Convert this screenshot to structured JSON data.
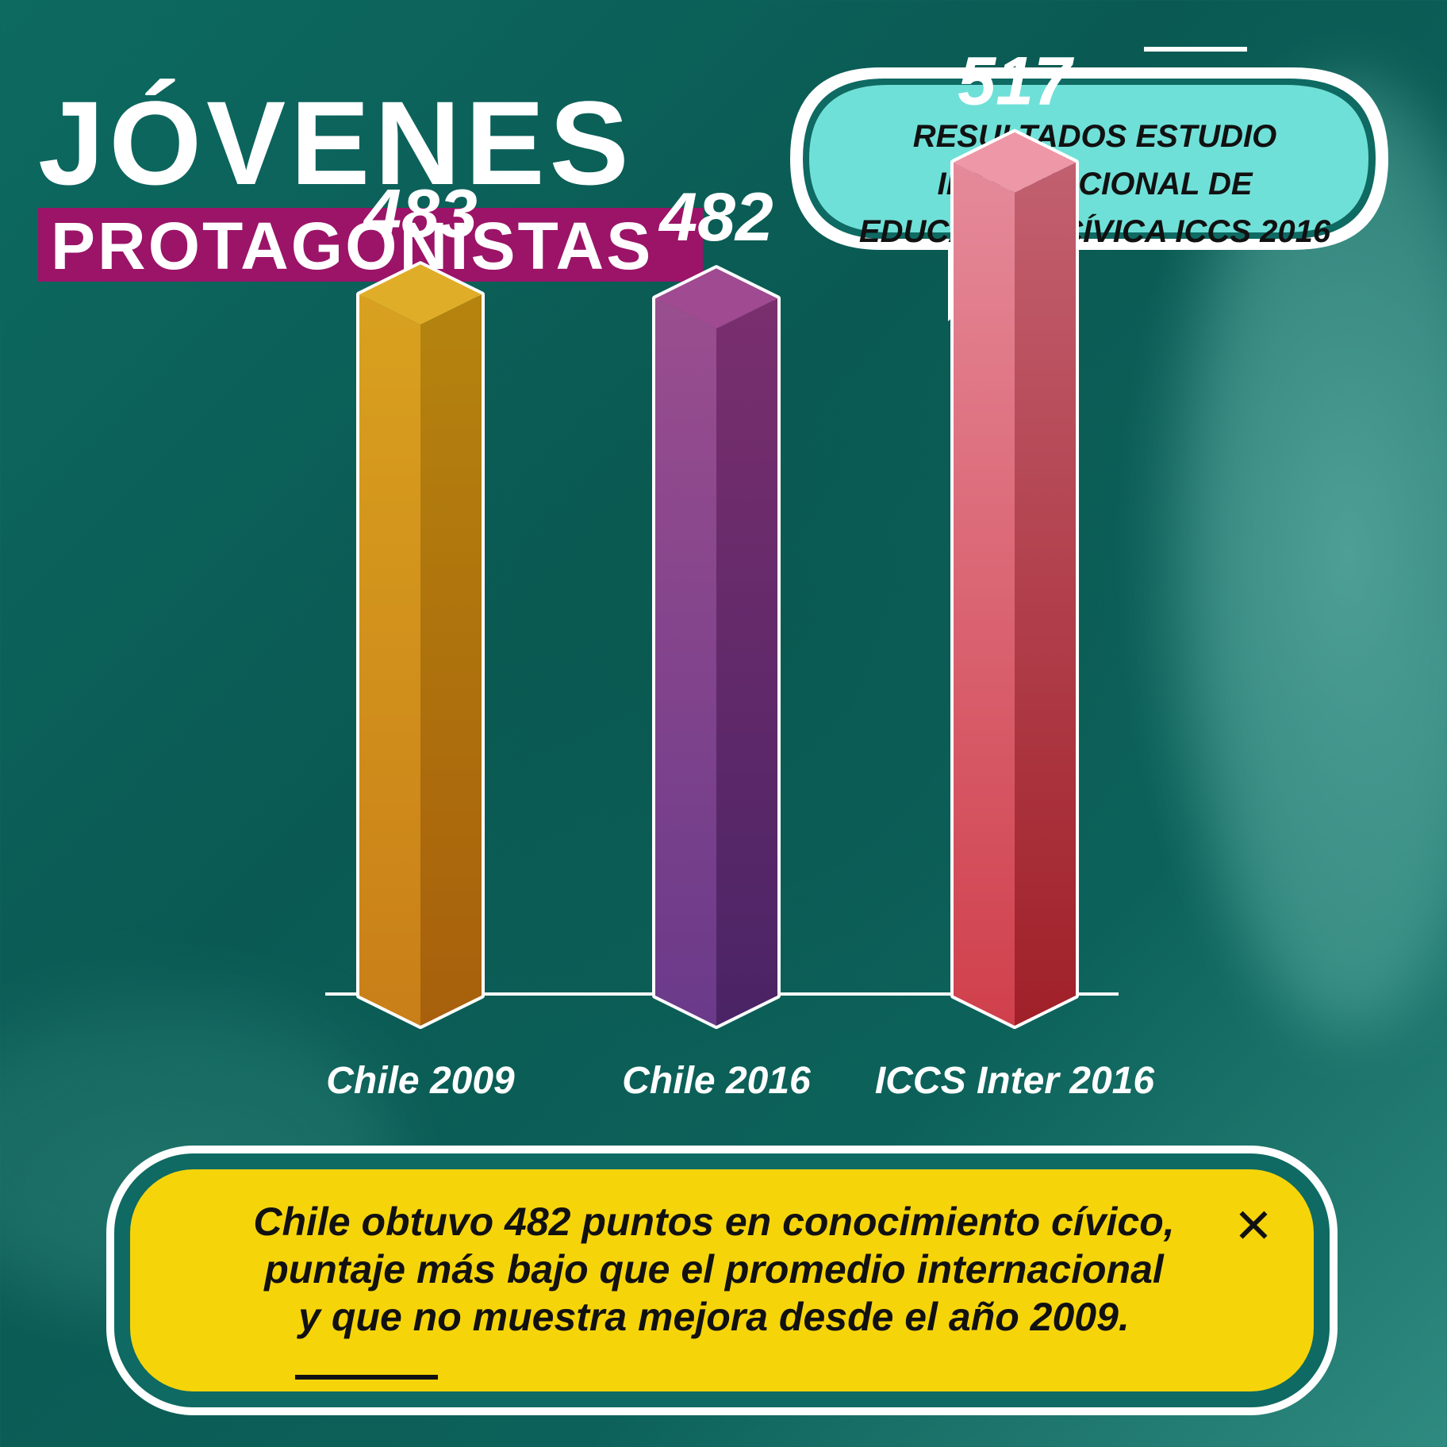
{
  "header": {
    "title": "JÓVENES",
    "subtitle": "PROTAGONISTAS"
  },
  "bubble": {
    "lines": [
      "RESULTADOS ESTUDIO",
      "INTERNACIONAL  DE",
      "EDUCACIÓN CÍVICA  ICCS 2016"
    ]
  },
  "chart_data": {
    "type": "bar",
    "categories": [
      "Chile 2009",
      "Chile 2016",
      "ICCS Inter 2016"
    ],
    "values": [
      483,
      482,
      517
    ],
    "value_labels": [
      "483",
      "482",
      "517"
    ],
    "colors": [
      "#c98a14",
      "#7a3a7e",
      "#d45a6a"
    ],
    "grid": false,
    "legend": "none"
  },
  "note": {
    "lines": [
      "Chile obtuvo 482 puntos en conocimiento cívico,",
      "puntaje más bajo que el promedio internacional",
      "y que no muestra mejora desde el año 2009."
    ],
    "close_symbol": "✕"
  }
}
